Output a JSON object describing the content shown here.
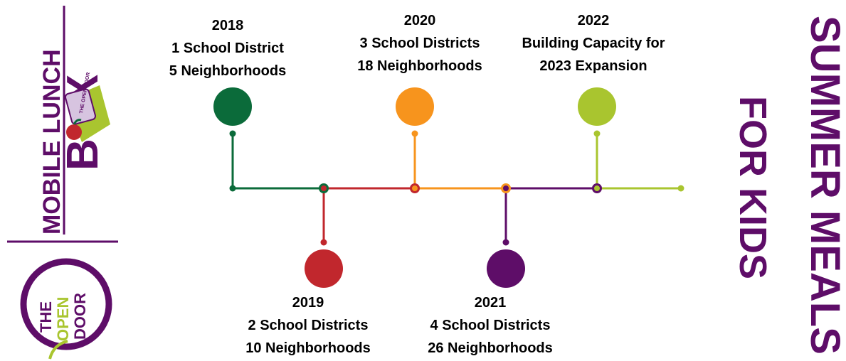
{
  "logo": {
    "line1": "MOBILE LUNCH",
    "letter1": "B",
    "letter2": "X",
    "box_label": "THE OPEN DOOR",
    "seal": [
      "THE",
      "OPEN",
      "DOOR"
    ]
  },
  "title": {
    "line1": "SUMMER MEALS",
    "line2": "FOR KIDS"
  },
  "timeline": [
    {
      "year": "2018",
      "lines": [
        "1 School District",
        "5 Neighborhoods"
      ],
      "color": "#0b6b3a",
      "side": "top"
    },
    {
      "year": "2019",
      "lines": [
        "2 School Districts",
        "10 Neighborhoods"
      ],
      "color": "#c1272d",
      "side": "bottom"
    },
    {
      "year": "2020",
      "lines": [
        "3 School Districts",
        "18 Neighborhoods"
      ],
      "color": "#f7941d",
      "side": "top"
    },
    {
      "year": "2021",
      "lines": [
        "4 School Districts",
        "26 Neighborhoods"
      ],
      "color": "#5e0d68",
      "side": "bottom"
    },
    {
      "year": "2022",
      "lines": [
        "Building Capacity for",
        "2023 Expansion"
      ],
      "color": "#a9c52f",
      "side": "top"
    }
  ]
}
